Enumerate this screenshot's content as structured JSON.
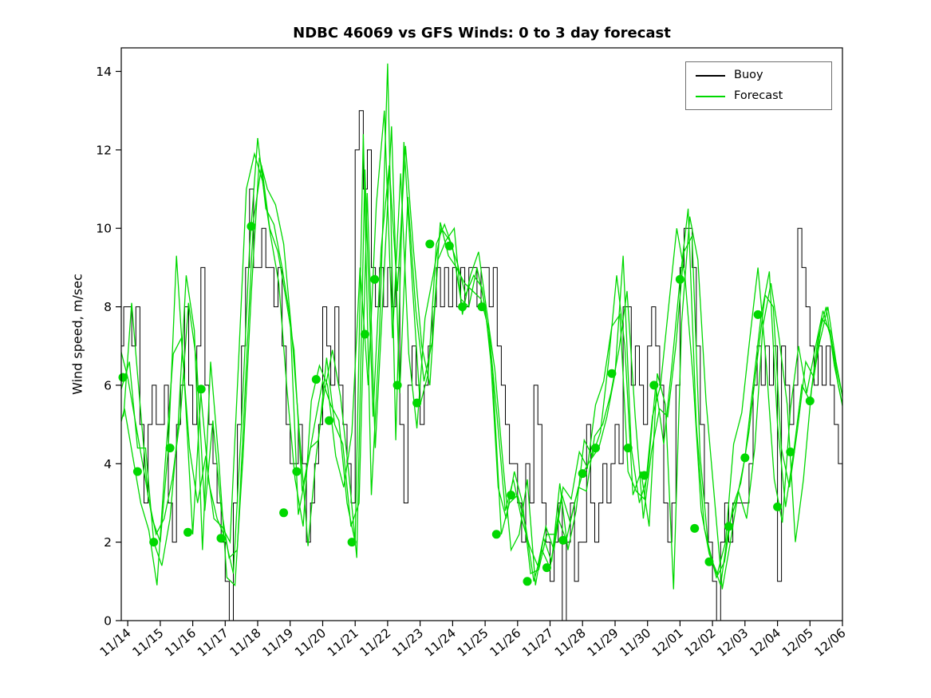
{
  "legend": {
    "items": [
      {
        "label": "Buoy",
        "color": "#000000"
      },
      {
        "label": "Forecast",
        "color": "#00d800"
      }
    ]
  },
  "chart_data": {
    "type": "line",
    "title": "NDBC 46069 vs GFS Winds: 0 to 3 day forecast",
    "xlabel": "",
    "ylabel": "Wind speed, m/sec",
    "xlim_days": [
      -0.2,
      22.0
    ],
    "ylim": [
      0,
      14.6
    ],
    "yticks": [
      0,
      2,
      4,
      6,
      8,
      10,
      12,
      14
    ],
    "xtick_labels": [
      "11/14",
      "11/15",
      "11/16",
      "11/17",
      "11/18",
      "11/19",
      "11/20",
      "11/21",
      "11/22",
      "11/23",
      "11/24",
      "11/25",
      "11/26",
      "11/27",
      "11/28",
      "11/29",
      "11/30",
      "12/01",
      "12/02",
      "12/03",
      "12/04",
      "12/05",
      "12/06"
    ],
    "grid": false,
    "legend_position": "top-right-inside",
    "colors": {
      "buoy": "#000000",
      "forecast": "#00d800"
    },
    "series": [
      {
        "name": "Buoy",
        "role": "buoy",
        "style": "steps",
        "color_key": "buoy",
        "t0_days": -0.25,
        "dt_days": 0.125,
        "values": [
          7,
          8,
          8,
          7,
          8,
          5,
          3,
          5,
          6,
          5,
          5,
          6,
          3,
          2,
          5,
          6,
          8,
          6,
          5,
          7,
          9,
          6,
          5,
          4,
          3,
          2,
          1,
          0,
          3,
          5,
          7,
          9,
          11,
          9,
          9,
          10,
          9,
          9,
          8,
          9,
          7,
          5,
          4,
          4,
          5,
          4,
          2,
          3,
          4,
          5,
          8,
          7,
          6,
          8,
          6,
          5,
          4,
          3,
          12,
          13,
          11,
          12,
          9,
          8,
          9,
          8,
          9,
          8,
          9,
          5,
          3,
          6,
          7,
          6,
          5,
          6,
          7,
          8,
          9,
          8,
          9,
          8,
          9,
          8,
          9,
          8,
          9,
          9,
          8,
          9,
          9,
          8,
          9,
          7,
          6,
          5,
          4,
          4,
          3,
          2,
          4,
          3,
          6,
          5,
          3,
          2,
          1,
          2,
          3,
          0,
          2,
          3,
          1,
          2,
          2,
          5,
          3,
          2,
          3,
          4,
          3,
          4,
          5,
          4,
          8,
          8,
          6,
          7,
          6,
          5,
          7,
          8,
          7,
          6,
          3,
          2,
          3,
          6,
          9,
          10,
          10,
          9,
          7,
          5,
          3,
          2,
          1,
          0,
          2,
          3,
          2,
          3,
          3,
          3,
          3,
          4,
          6,
          7,
          6,
          7,
          6,
          7,
          1,
          7,
          6,
          5,
          6,
          10,
          9,
          8,
          7,
          6,
          7,
          6,
          7,
          6,
          5,
          4,
          5,
          4
        ]
      },
      {
        "name": "Forecast",
        "role": "forecast",
        "style": "line",
        "color_key": "forecast",
        "t0_days": -0.25,
        "dt_days": 0.25,
        "values": [
          7.0,
          6.2,
          5.0,
          3.8,
          2.6,
          2.0,
          4.4,
          9.3,
          6.0,
          2.2,
          5.8,
          3.5,
          2.6,
          2.1,
          1.2,
          5.0,
          9.5,
          12.3,
          10.5,
          10.1,
          9.0,
          7.7,
          2.7,
          3.8,
          5.0,
          6.1,
          5.5,
          5.1,
          3.0,
          2.0,
          12.4,
          3.2,
          7.3,
          14.2,
          4.6,
          12.2,
          8.7,
          5.5,
          6.3,
          9.6,
          10.1,
          9.5,
          8.2,
          8.0,
          9.0,
          8.0,
          6.0,
          2.2,
          3.0,
          3.2,
          2.4,
          1.0,
          1.8,
          1.35,
          2.6,
          2.05,
          3.0,
          3.75,
          4.1,
          4.4,
          5.2,
          6.3,
          9.3,
          4.4,
          3.0,
          3.7,
          6.0,
          4.5,
          6.5,
          8.7,
          10.5,
          5.0,
          2.35,
          1.5,
          0.9,
          2.4,
          3.1,
          4.15,
          6.0,
          7.8,
          8.9,
          5.0,
          2.9,
          4.3,
          6.0,
          5.6,
          7.2,
          8.0,
          6.5,
          5.5,
          4.6,
          4.1
        ]
      },
      {
        "name": "Forecast",
        "role": "forecast",
        "style": "line",
        "color_key": "forecast",
        "t0_days": -0.13,
        "dt_days": 0.25,
        "values": [
          5.2,
          8.1,
          5.6,
          3.2,
          2.2,
          2.6,
          3.6,
          5.2,
          8.1,
          6.6,
          2.8,
          5.1,
          2.9,
          1.6,
          1.8,
          6.0,
          10.2,
          11.6,
          10.0,
          9.4,
          8.2,
          6.9,
          3.3,
          4.4,
          4.6,
          6.7,
          5.0,
          4.5,
          2.4,
          3.0,
          10.9,
          4.4,
          8.5,
          12.6,
          5.8,
          10.8,
          7.9,
          6.1,
          7.1,
          10.15,
          9.3,
          9.0,
          8.6,
          8.4,
          8.2,
          7.4,
          5.2,
          2.8,
          3.6,
          2.6,
          1.9,
          1.4,
          2.4,
          1.8,
          3.2,
          2.5,
          3.4,
          3.3,
          4.7,
          5.0,
          5.8,
          6.9,
          8.4,
          5.2,
          2.6,
          4.3,
          5.4,
          5.2,
          7.0,
          9.4,
          9.8,
          4.2,
          1.9,
          1.1,
          1.5,
          2.9,
          3.5,
          4.8,
          6.6,
          8.3,
          8.0,
          4.4,
          3.4,
          4.9,
          6.6,
          6.2,
          7.7,
          7.4,
          6.0,
          5.0,
          4.3,
          3.9
        ]
      },
      {
        "name": "Forecast",
        "role": "forecast",
        "style": "line",
        "color_key": "forecast",
        "t0_days": -0.35,
        "dt_days": 0.25,
        "values": [
          4.6,
          5.4,
          4.2,
          3.0,
          2.3,
          0.9,
          4.0,
          6.8,
          7.2,
          4.4,
          3.0,
          4.2,
          2.6,
          2.4,
          2.0,
          6.4,
          11.0,
          11.9,
          11.2,
          9.8,
          8.6,
          5.9,
          3.6,
          2.4,
          5.6,
          6.5,
          6.0,
          4.2,
          3.4,
          4.8,
          9.0,
          6.0,
          10.6,
          13.0,
          7.2,
          11.4,
          6.8,
          4.9,
          7.7,
          8.8,
          10.0,
          9.7,
          9.1,
          8.3,
          8.8,
          8.5,
          7.0,
          3.4,
          2.6,
          3.8,
          3.0,
          1.2,
          1.3,
          2.2,
          2.2,
          3.4,
          3.1,
          4.3,
          3.9,
          5.5,
          6.1,
          7.5,
          7.8,
          3.8,
          3.3,
          3.1,
          5.2,
          6.0,
          8.0,
          10.0,
          8.8,
          6.2,
          2.8,
          1.7,
          1.2,
          2.0,
          4.5,
          5.3,
          7.2,
          9.0,
          6.6,
          3.6,
          2.5,
          5.4,
          7.0,
          5.8,
          6.9,
          7.9,
          7.2,
          6.1,
          5.2,
          4.5
        ]
      },
      {
        "name": "Forecast",
        "role": "forecast",
        "style": "line",
        "color_key": "forecast",
        "t0_days": -0.2,
        "dt_days": 0.25,
        "values": [
          5.9,
          6.6,
          4.4,
          4.4,
          2.0,
          1.4,
          2.6,
          5.0,
          8.8,
          7.4,
          1.8,
          6.6,
          4.1,
          1.1,
          0.9,
          4.2,
          8.3,
          11.8,
          11.0,
          10.6,
          9.6,
          7.3,
          4.6,
          1.9,
          4.2,
          5.8,
          6.9,
          5.7,
          3.8,
          1.6,
          11.5,
          5.2,
          9.5,
          11.6,
          8.4,
          12.1,
          9.4,
          7.0,
          6.0,
          9.2,
          9.7,
          10.0,
          7.8,
          8.8,
          9.4,
          7.9,
          6.4,
          4.0,
          1.8,
          2.2,
          3.6,
          0.9,
          2.1,
          1.5,
          3.5,
          1.8,
          2.8,
          4.6,
          4.2,
          4.8,
          6.6,
          8.8,
          7.0,
          3.2,
          3.8,
          2.4,
          6.3,
          5.5,
          0.8,
          7.6,
          10.3,
          9.2,
          5.6,
          3.2,
          0.8,
          2.0,
          3.3,
          2.6,
          4.4,
          7.5,
          8.6,
          7.2,
          5.5,
          2.0,
          3.6,
          5.9,
          7.1,
          8.0,
          6.6,
          5.5,
          4.3,
          4.8
        ]
      }
    ],
    "forecast_markers": {
      "t_days": [
        -0.15,
        0.3,
        0.8,
        1.3,
        1.85,
        2.26,
        2.87,
        3.8,
        4.8,
        5.2,
        5.8,
        6.2,
        6.9,
        7.3,
        7.6,
        8.3,
        8.9,
        9.3,
        9.9,
        10.3,
        10.9,
        11.35,
        11.8,
        12.3,
        12.9,
        13.4,
        14.0,
        14.4,
        14.9,
        15.4,
        15.9,
        16.2,
        17.0,
        17.45,
        17.9,
        18.5,
        19.0,
        19.4,
        20.0,
        20.4,
        21.0
      ],
      "values": [
        6.2,
        3.8,
        2.0,
        4.4,
        2.25,
        5.9,
        2.1,
        10.05,
        2.75,
        3.8,
        6.15,
        5.1,
        2.0,
        7.3,
        8.7,
        6.0,
        5.55,
        9.6,
        9.55,
        8.0,
        8.0,
        2.2,
        3.2,
        1.0,
        1.35,
        2.05,
        3.75,
        4.4,
        6.3,
        4.4,
        3.7,
        6.0,
        8.7,
        2.35,
        1.5,
        2.4,
        4.15,
        7.8,
        2.9,
        4.3,
        5.6
      ]
    }
  }
}
